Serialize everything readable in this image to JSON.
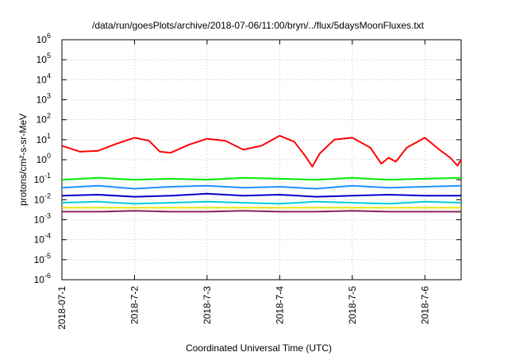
{
  "chart_data": {
    "type": "line",
    "title": "/data/run/goesPlots/archive/2018-07-06/11:00/bryn/../flux/5daysMoonFluxes.txt",
    "xlabel": "Coordinated Universal Time (UTC)",
    "ylabel": "protons/cm²-s-sr-MeV",
    "y_scale": "log",
    "ylim_exp": [
      -6,
      6
    ],
    "y_tick_exponents": [
      -6,
      -5,
      -4,
      -3,
      -2,
      -1,
      0,
      1,
      2,
      3,
      4,
      5,
      6
    ],
    "y_tick_base": "10",
    "x_ticks": [
      "2018-07-1",
      "2018-7-2",
      "2018-7-3",
      "2018-7-4",
      "2018-7-5",
      "2018-7-6"
    ],
    "xlim_days": [
      0,
      5.5
    ],
    "grid": true,
    "series": [
      {
        "color": "#ff0000",
        "x_days": [
          0,
          0.25,
          0.5,
          0.75,
          1.0,
          1.2,
          1.35,
          1.5,
          1.75,
          2.0,
          2.25,
          2.5,
          2.75,
          3.0,
          3.2,
          3.35,
          3.45,
          3.55,
          3.75,
          4.0,
          4.25,
          4.4,
          4.5,
          4.6,
          4.75,
          5.0,
          5.2,
          5.35,
          5.45,
          5.5
        ],
        "log10_values": [
          0.7,
          0.4,
          0.45,
          0.8,
          1.1,
          0.95,
          0.4,
          0.35,
          0.75,
          1.05,
          0.95,
          0.5,
          0.7,
          1.2,
          0.9,
          0.2,
          -0.35,
          0.3,
          1.0,
          1.1,
          0.6,
          -0.2,
          0.1,
          -0.1,
          0.6,
          1.1,
          0.5,
          0.1,
          -0.3,
          0.0
        ]
      },
      {
        "color": "#00ee00",
        "x_days": [
          0,
          0.5,
          1.0,
          1.5,
          2.0,
          2.5,
          3.0,
          3.5,
          4.0,
          4.5,
          5.0,
          5.5
        ],
        "log10_values": [
          -1.0,
          -0.9,
          -1.0,
          -0.95,
          -1.0,
          -0.9,
          -0.95,
          -1.0,
          -0.9,
          -1.0,
          -0.95,
          -0.9
        ]
      },
      {
        "color": "#1e90ff",
        "x_days": [
          0,
          0.5,
          1.0,
          1.5,
          2.0,
          2.5,
          3.0,
          3.5,
          4.0,
          4.5,
          5.0,
          5.5
        ],
        "log10_values": [
          -1.4,
          -1.3,
          -1.45,
          -1.35,
          -1.3,
          -1.4,
          -1.35,
          -1.45,
          -1.3,
          -1.4,
          -1.35,
          -1.3
        ]
      },
      {
        "color": "#0000cd",
        "x_days": [
          0,
          0.5,
          1.0,
          1.5,
          2.0,
          2.5,
          3.0,
          3.5,
          4.0,
          4.5,
          5.0,
          5.5
        ],
        "log10_values": [
          -1.8,
          -1.75,
          -1.85,
          -1.8,
          -1.7,
          -1.8,
          -1.75,
          -1.85,
          -1.8,
          -1.75,
          -1.8,
          -1.8
        ]
      },
      {
        "color": "#00ced1",
        "x_days": [
          0,
          0.5,
          1.0,
          1.5,
          2.0,
          2.5,
          3.0,
          3.5,
          4.0,
          4.5,
          5.0,
          5.5
        ],
        "log10_values": [
          -2.15,
          -2.1,
          -2.2,
          -2.15,
          -2.1,
          -2.15,
          -2.2,
          -2.1,
          -2.15,
          -2.2,
          -2.1,
          -2.15
        ]
      },
      {
        "color": "#e8e800",
        "x_days": [
          0,
          0.5,
          1.0,
          1.5,
          2.0,
          2.5,
          3.0,
          3.5,
          4.0,
          4.5,
          5.0,
          5.5
        ],
        "log10_values": [
          -2.4,
          -2.4,
          -2.4,
          -2.4,
          -2.4,
          -2.4,
          -2.4,
          -2.4,
          -2.4,
          -2.4,
          -2.4,
          -2.4
        ]
      },
      {
        "color": "#8b2252",
        "x_days": [
          0,
          0.5,
          1.0,
          1.5,
          2.0,
          2.5,
          3.0,
          3.5,
          4.0,
          4.5,
          5.0,
          5.5
        ],
        "log10_values": [
          -2.6,
          -2.6,
          -2.55,
          -2.6,
          -2.6,
          -2.55,
          -2.6,
          -2.6,
          -2.55,
          -2.6,
          -2.6,
          -2.6
        ]
      }
    ]
  }
}
